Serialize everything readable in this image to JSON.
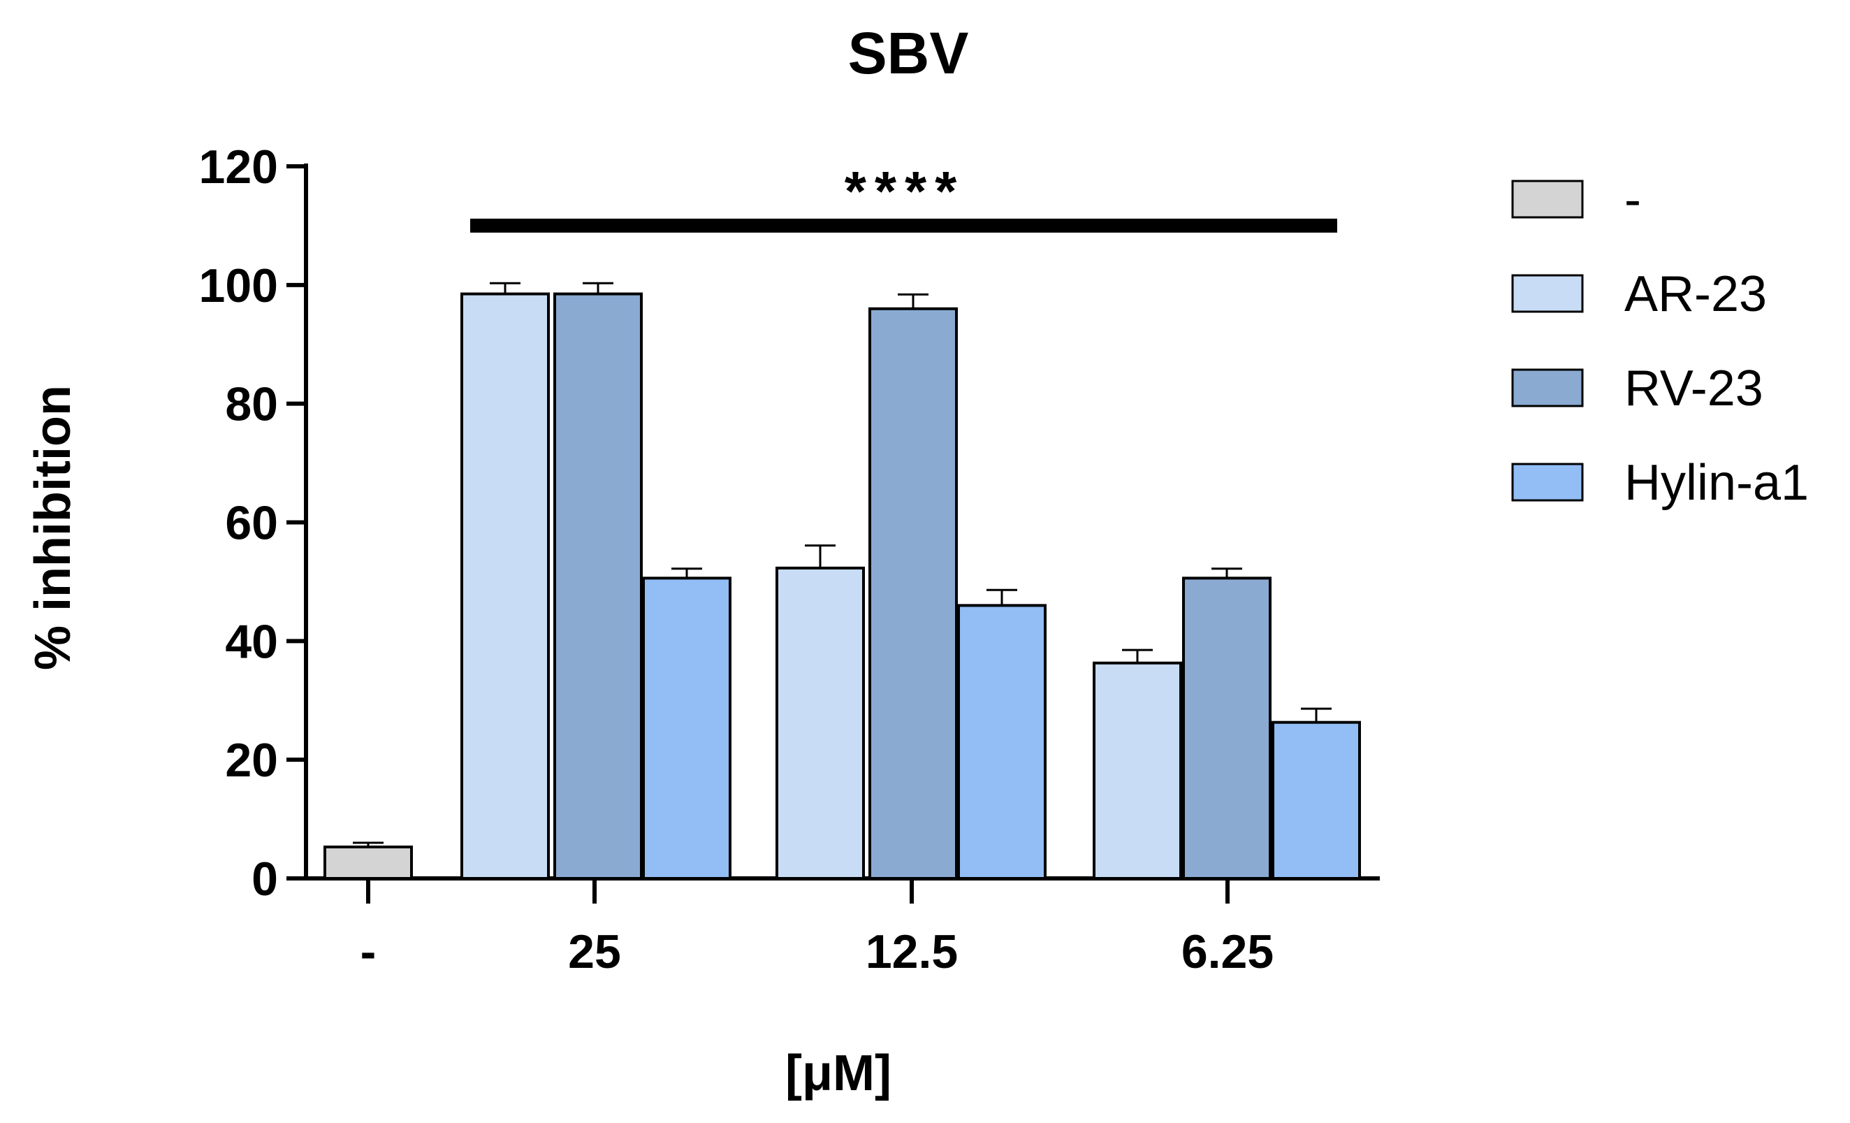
{
  "chart_data": {
    "type": "bar",
    "title": "SBV",
    "xlabel": "[μM]",
    "ylabel": "% inhibition",
    "ylim": [
      0,
      120
    ],
    "yticks": [
      0,
      20,
      40,
      60,
      80,
      100,
      120
    ],
    "categories": [
      "-",
      "25",
      "12.5",
      "6.25"
    ],
    "series": [
      {
        "name": "-",
        "color": "#d4d4d4",
        "values": [
          5.3,
          null,
          null,
          null
        ],
        "errors": [
          0.7,
          null,
          null,
          null
        ]
      },
      {
        "name": "AR-23",
        "color": "#c8dcf5",
        "values": [
          null,
          98.5,
          52.3,
          36.3
        ],
        "errors": [
          null,
          1.8,
          3.8,
          2.2
        ]
      },
      {
        "name": "RV-23",
        "color": "#8aaad2",
        "values": [
          null,
          98.5,
          96.0,
          50.6
        ],
        "errors": [
          null,
          1.8,
          2.4,
          1.6
        ]
      },
      {
        "name": "Hylin-a1",
        "color": "#92bdf5",
        "values": [
          null,
          50.6,
          46.0,
          26.3
        ],
        "errors": [
          null,
          1.6,
          2.6,
          2.3
        ]
      }
    ],
    "annotations": [
      {
        "text": "****",
        "span_categories": [
          "25",
          "6.25"
        ],
        "y": 110
      }
    ],
    "legend_position": "right"
  }
}
